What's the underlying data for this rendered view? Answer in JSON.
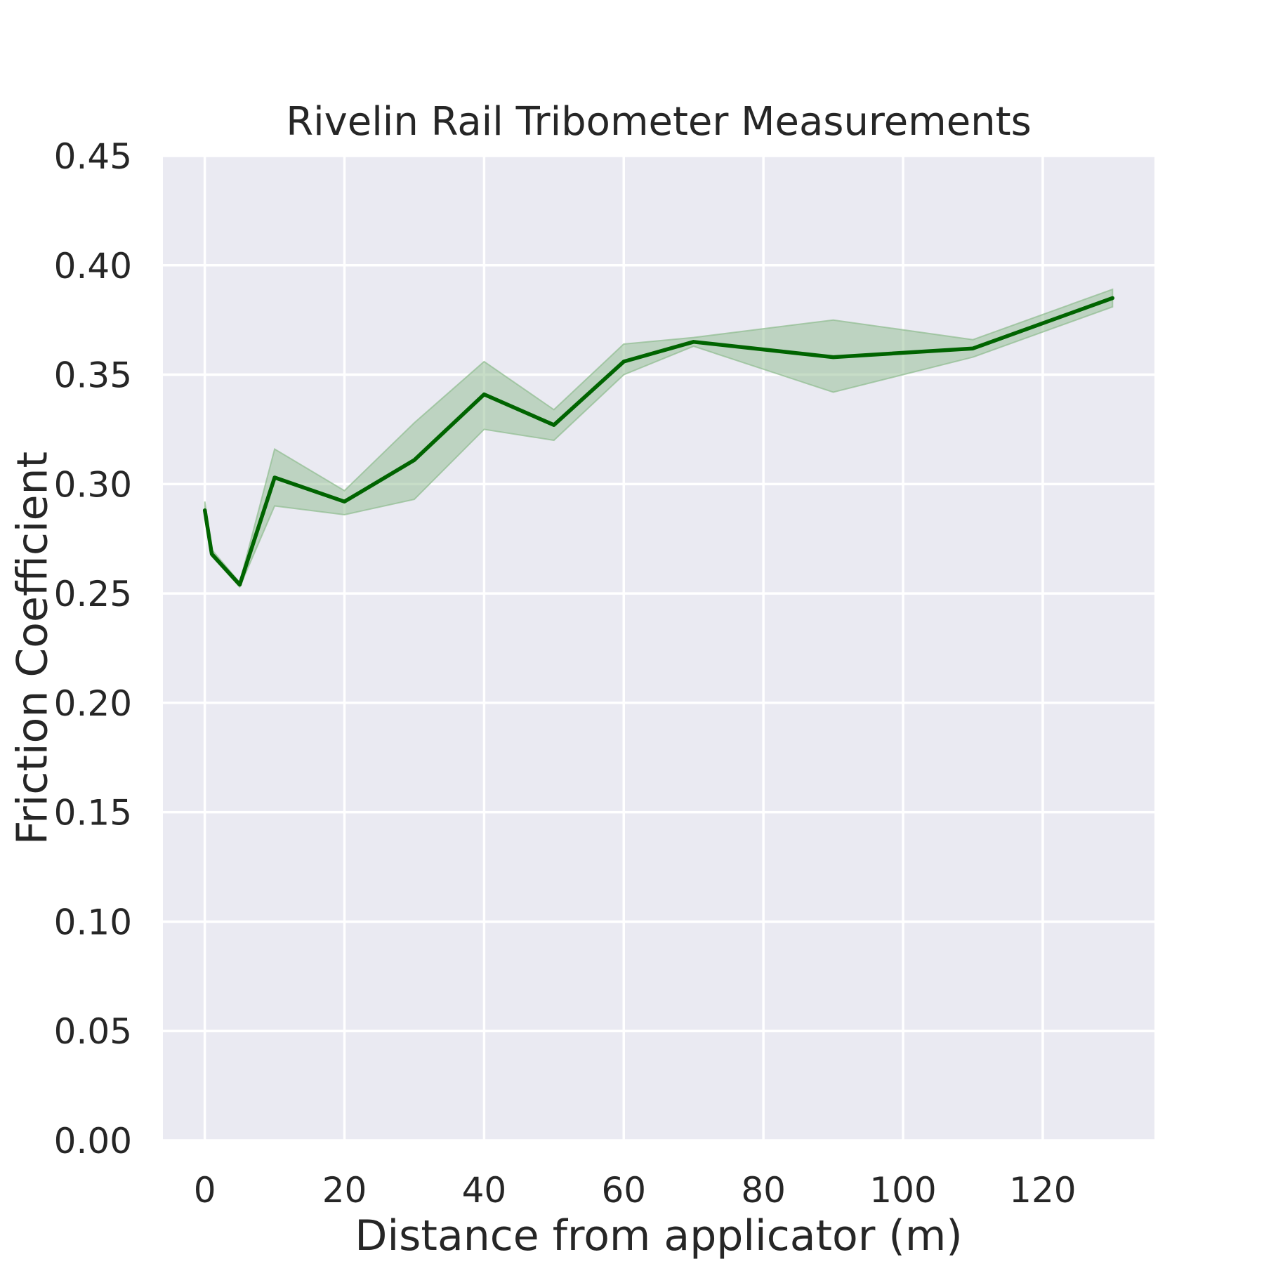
{
  "chart_data": {
    "type": "line",
    "title": "Rivelin Rail Tribometer Measurements",
    "xlabel": "Distance from applicator (m)",
    "ylabel": "Friction Coefficient",
    "xlim": [
      -6,
      136
    ],
    "ylim": [
      0.0,
      0.45
    ],
    "xticks": [
      0,
      20,
      40,
      60,
      80,
      100,
      120
    ],
    "xtick_labels": [
      "0",
      "20",
      "40",
      "60",
      "80",
      "100",
      "120"
    ],
    "yticks": [
      0.0,
      0.05,
      0.1,
      0.15,
      0.2,
      0.25,
      0.3,
      0.35,
      0.4,
      0.45
    ],
    "ytick_labels": [
      "0.00",
      "0.05",
      "0.10",
      "0.15",
      "0.20",
      "0.25",
      "0.30",
      "0.35",
      "0.40",
      "0.45"
    ],
    "grid": true,
    "background_color": "#eaeaf2",
    "grid_color": "#ffffff",
    "series": [
      {
        "color": "#006400",
        "band_color": "#8fbc8f",
        "x": [
          0,
          1,
          5,
          10,
          20,
          30,
          40,
          50,
          60,
          70,
          90,
          110,
          130
        ],
        "values": [
          0.288,
          0.268,
          0.254,
          0.303,
          0.292,
          0.311,
          0.341,
          0.327,
          0.356,
          0.365,
          0.358,
          0.362,
          0.385
        ],
        "lower": [
          0.284,
          0.267,
          0.253,
          0.29,
          0.286,
          0.293,
          0.325,
          0.32,
          0.35,
          0.363,
          0.342,
          0.358,
          0.381
        ],
        "upper": [
          0.292,
          0.27,
          0.255,
          0.316,
          0.297,
          0.328,
          0.356,
          0.334,
          0.364,
          0.367,
          0.375,
          0.366,
          0.389
        ]
      }
    ]
  }
}
